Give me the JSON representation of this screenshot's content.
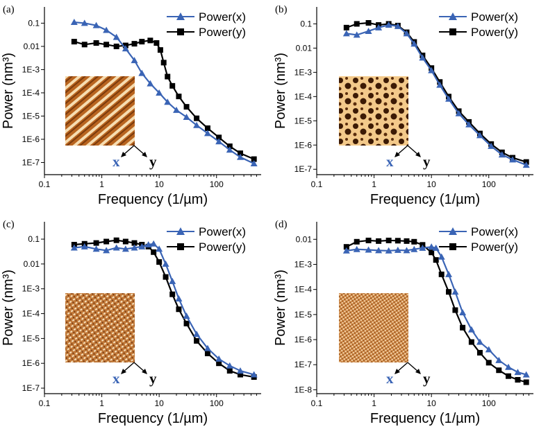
{
  "figure": {
    "background": "#ffffff"
  },
  "colors": {
    "series_x": "#3a64b5",
    "series_y": "#000000",
    "texture_light": "#f6ddb2",
    "texture_dark": "#9a4b12"
  },
  "chart_data": [
    {
      "panel": "(a)",
      "type": "line",
      "xscale": "log",
      "yscale": "log",
      "xlim": [
        0.1,
        600
      ],
      "ylim": [
        3e-08,
        0.5
      ],
      "xlabel": "Frequency (1/µm)",
      "ylabel": "Power (nm³)",
      "xticks": [
        0.1,
        1,
        10,
        100
      ],
      "xtick_labels": [
        "0.1",
        "1",
        "10",
        "100"
      ],
      "yticks": [
        1e-07,
        1e-06,
        1e-05,
        0.0001,
        0.001,
        0.01,
        0.1
      ],
      "ytick_labels": [
        "1E-7",
        "1E-6",
        "1E-5",
        "1E-4",
        "1E-3",
        "0.01",
        "0.1"
      ],
      "legend": [
        "Power(x)",
        "Power(y)"
      ],
      "inset_arrows": [
        "x",
        "y"
      ],
      "series": [
        {
          "name": "Power(x)",
          "marker": "triangle",
          "x": [
            0.33,
            0.5,
            0.8,
            1.2,
            1.8,
            2.6,
            3.7,
            5,
            7,
            10,
            14,
            20,
            30,
            45,
            70,
            110,
            170,
            260,
            450
          ],
          "y": [
            0.11,
            0.1,
            0.08,
            0.05,
            0.025,
            0.008,
            0.0025,
            0.0007,
            0.00025,
            0.0001,
            4e-05,
            1.8e-05,
            9e-06,
            4e-06,
            1.8e-06,
            8e-07,
            3.5e-07,
            1.7e-07,
            9e-08
          ]
        },
        {
          "name": "Power(y)",
          "marker": "square",
          "x": [
            0.33,
            0.5,
            0.8,
            1.2,
            1.8,
            2.6,
            3.7,
            5,
            7,
            9,
            10.5,
            12,
            14,
            17,
            22,
            30,
            45,
            70,
            110,
            170,
            260,
            450
          ],
          "y": [
            0.016,
            0.012,
            0.014,
            0.012,
            0.01,
            0.011,
            0.013,
            0.016,
            0.018,
            0.014,
            0.007,
            0.002,
            0.0005,
            0.0002,
            7e-05,
            2.5e-05,
            8e-06,
            3e-06,
            1.2e-06,
            5e-07,
            2.5e-07,
            1.4e-07
          ]
        }
      ]
    },
    {
      "panel": "(b)",
      "type": "line",
      "xscale": "log",
      "yscale": "log",
      "xlim": [
        0.1,
        600
      ],
      "ylim": [
        6e-08,
        0.5
      ],
      "xlabel": "Frequency (1/µm)",
      "ylabel": "Power (nm³)",
      "xticks": [
        0.1,
        1,
        10,
        100
      ],
      "xtick_labels": [
        "0.1",
        "1",
        "10",
        "100"
      ],
      "yticks": [
        1e-07,
        1e-06,
        1e-05,
        0.0001,
        0.001,
        0.01,
        0.1
      ],
      "ytick_labels": [
        "1E-7",
        "1E-6",
        "1E-5",
        "1E-4",
        "1E-3",
        "0.01",
        "0.1"
      ],
      "legend": [
        "Power(x)",
        "Power(y)"
      ],
      "inset_arrows": [
        "x",
        "y"
      ],
      "series": [
        {
          "name": "Power(x)",
          "marker": "triangle",
          "x": [
            0.33,
            0.5,
            0.8,
            1.2,
            1.8,
            2.6,
            3.7,
            5,
            7,
            10,
            14,
            20,
            30,
            45,
            70,
            110,
            170,
            260,
            450
          ],
          "y": [
            0.04,
            0.035,
            0.05,
            0.07,
            0.09,
            0.08,
            0.04,
            0.015,
            0.004,
            0.0012,
            0.0003,
            8e-05,
            2e-05,
            7e-06,
            2.5e-06,
            9e-07,
            4e-07,
            2.5e-07,
            1.5e-07
          ]
        },
        {
          "name": "Power(y)",
          "marker": "square",
          "x": [
            0.33,
            0.5,
            0.8,
            1.2,
            1.8,
            2.6,
            3.7,
            5,
            7,
            10,
            14,
            20,
            30,
            45,
            70,
            110,
            170,
            260,
            450
          ],
          "y": [
            0.07,
            0.1,
            0.11,
            0.09,
            0.1,
            0.085,
            0.045,
            0.018,
            0.005,
            0.0015,
            0.0004,
            0.0001,
            2.5e-05,
            9e-06,
            3e-06,
            1.1e-06,
            5e-07,
            3e-07,
            2e-07
          ]
        }
      ]
    },
    {
      "panel": "(c)",
      "type": "line",
      "xscale": "log",
      "yscale": "log",
      "xlim": [
        0.1,
        600
      ],
      "ylim": [
        6e-08,
        0.5
      ],
      "xlabel": "Frequency (1/µm)",
      "ylabel": "Power (nm³)",
      "xticks": [
        0.1,
        1,
        10,
        100
      ],
      "xtick_labels": [
        "0.1",
        "1",
        "10",
        "100"
      ],
      "yticks": [
        1e-07,
        1e-06,
        1e-05,
        0.0001,
        0.001,
        0.01,
        0.1
      ],
      "ytick_labels": [
        "1E-7",
        "1E-6",
        "1E-5",
        "1E-4",
        "1E-3",
        "0.01",
        "0.1"
      ],
      "legend": [
        "Power(x)",
        "Power(y)"
      ],
      "inset_arrows": [
        "x",
        "y"
      ],
      "series": [
        {
          "name": "Power(x)",
          "marker": "triangle",
          "x": [
            0.33,
            0.5,
            0.8,
            1.2,
            1.8,
            2.6,
            3.7,
            5,
            6.5,
            8,
            10,
            13,
            17,
            22,
            30,
            45,
            70,
            110,
            170,
            260,
            450
          ],
          "y": [
            0.045,
            0.05,
            0.04,
            0.035,
            0.045,
            0.04,
            0.045,
            0.05,
            0.06,
            0.065,
            0.04,
            0.01,
            0.002,
            0.0004,
            8e-05,
            1.5e-05,
            4e-06,
            1.5e-06,
            8e-07,
            5e-07,
            3.5e-07
          ]
        },
        {
          "name": "Power(y)",
          "marker": "square",
          "x": [
            0.33,
            0.5,
            0.8,
            1.2,
            1.8,
            2.6,
            3.7,
            5,
            6.5,
            8,
            10,
            13,
            17,
            22,
            30,
            45,
            70,
            110,
            170,
            260,
            450
          ],
          "y": [
            0.06,
            0.065,
            0.07,
            0.08,
            0.09,
            0.08,
            0.07,
            0.06,
            0.05,
            0.03,
            0.012,
            0.003,
            0.0006,
            0.00015,
            4e-05,
            8e-06,
            2.5e-06,
            1e-06,
            5e-07,
            3.5e-07,
            2.8e-07
          ]
        }
      ]
    },
    {
      "panel": "(d)",
      "type": "line",
      "xscale": "log",
      "yscale": "log",
      "xlim": [
        0.1,
        600
      ],
      "ylim": [
        7e-09,
        0.05
      ],
      "xlabel": "Frequency (1/µm)",
      "ylabel": "Power (nm³)",
      "xticks": [
        0.1,
        1,
        10,
        100
      ],
      "xtick_labels": [
        "0.1",
        "1",
        "10",
        "100"
      ],
      "yticks": [
        1e-08,
        1e-07,
        1e-06,
        1e-05,
        0.0001,
        0.001,
        0.01
      ],
      "ytick_labels": [
        "1E-8",
        "1E-7",
        "1E-6",
        "1E-5",
        "1E-4",
        "1E-3",
        "0.01"
      ],
      "legend": [
        "Power(x)",
        "Power(y)"
      ],
      "inset_arrows": [
        "x",
        "y"
      ],
      "series": [
        {
          "name": "Power(x)",
          "marker": "triangle",
          "x": [
            0.33,
            0.5,
            0.8,
            1.2,
            1.8,
            2.6,
            3.7,
            5,
            7,
            10,
            12,
            15,
            20,
            26,
            35,
            50,
            70,
            100,
            150,
            220,
            320,
            450
          ],
          "y": [
            0.0035,
            0.004,
            0.0038,
            0.0036,
            0.0035,
            0.0037,
            0.0036,
            0.004,
            0.0045,
            0.005,
            0.0045,
            0.002,
            0.0004,
            8e-05,
            1.2e-05,
            2.5e-06,
            8e-07,
            4e-07,
            1.5e-07,
            8e-08,
            5e-08,
            4e-08
          ]
        },
        {
          "name": "Power(y)",
          "marker": "square",
          "x": [
            0.33,
            0.5,
            0.8,
            1.2,
            1.8,
            2.6,
            3.7,
            5,
            7,
            10,
            12,
            15,
            20,
            26,
            35,
            50,
            70,
            100,
            150,
            220,
            320,
            450
          ],
          "y": [
            0.005,
            0.008,
            0.009,
            0.0085,
            0.009,
            0.0088,
            0.0085,
            0.008,
            0.006,
            0.003,
            0.0015,
            0.0004,
            8e-05,
            1.5e-05,
            3e-06,
            8e-07,
            3e-07,
            1.2e-07,
            6e-08,
            3.5e-08,
            2.5e-08,
            2e-08
          ]
        }
      ]
    }
  ]
}
